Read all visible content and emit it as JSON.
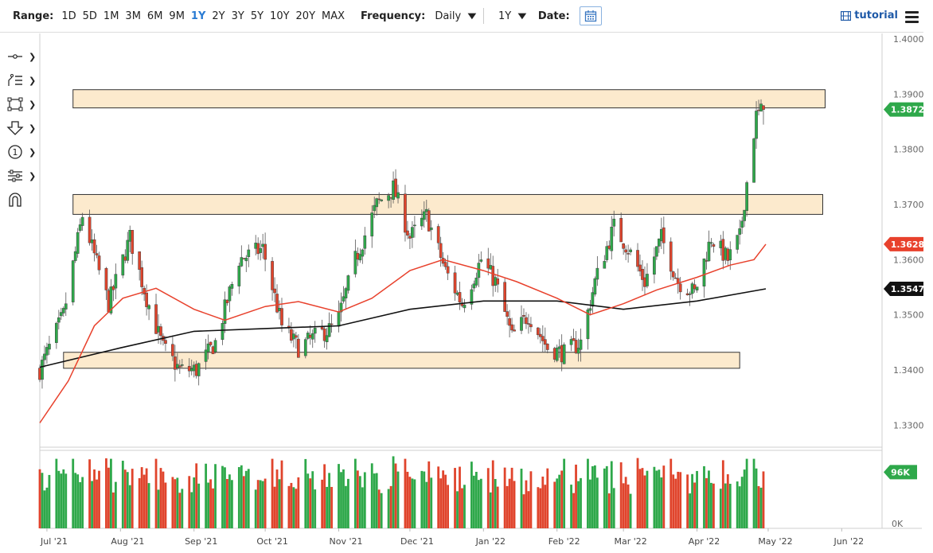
{
  "toolbar": {
    "range_label": "Range:",
    "ranges": [
      "1D",
      "5D",
      "1M",
      "3M",
      "6M",
      "9M",
      "1Y",
      "2Y",
      "3Y",
      "5Y",
      "10Y",
      "20Y",
      "MAX"
    ],
    "active_range": "1Y",
    "frequency_label": "Frequency:",
    "frequency_value": "Daily",
    "period_value": "1Y",
    "date_label": "Date:",
    "tutorial_label": "tutorial"
  },
  "sidebar": {
    "tools": [
      "crosshair-icon",
      "drawing-list-icon",
      "rectangle-select-icon",
      "arrow-down-icon",
      "numbered-marker-icon",
      "indicator-settings-icon",
      "magnet-icon"
    ]
  },
  "colors": {
    "up": "#2ea84a",
    "down": "#e0442c",
    "ma_fast": "#e8412c",
    "ma_slow": "#111111",
    "zone_fill": "#fbe6c4",
    "zone_stroke": "#333333",
    "axis_text": "#666666",
    "volume_highlight": "#3355cc"
  },
  "chart_data": {
    "type": "candlestick",
    "y_ticks": [
      "1.4000",
      "1.3900",
      "1.3800",
      "1.3700",
      "1.3600",
      "1.3500",
      "1.3400",
      "1.3300"
    ],
    "ylim": [
      1.326,
      1.401
    ],
    "x_ticks": [
      "Jul '21",
      "Aug '21",
      "Sep '21",
      "Oct '21",
      "Nov '21",
      "Dec '21",
      "Jan '22",
      "Feb '22",
      "Mar '22",
      "Apr '22",
      "May '22",
      "Jun '22"
    ],
    "x_range": [
      "2021-06-28",
      "2022-06-18"
    ],
    "price_tags": [
      {
        "label": "1.3872",
        "value": 1.3872,
        "color": "#2ea84a"
      },
      {
        "label": "1.3628",
        "value": 1.3628,
        "color": "#e8412c"
      },
      {
        "label": "1.3547",
        "value": 1.3547,
        "color": "#111111"
      }
    ],
    "zones": [
      {
        "from": "2021-07-12",
        "to": "2022-05-25",
        "low": 1.3875,
        "high": 1.3908
      },
      {
        "from": "2021-07-12",
        "to": "2022-05-24",
        "low": 1.3682,
        "high": 1.3718
      },
      {
        "from": "2021-07-08",
        "to": "2022-04-19",
        "low": 1.3403,
        "high": 1.3432
      }
    ],
    "key_closes": [
      [
        "2021-06-28",
        1.34
      ],
      [
        "2021-07-08",
        1.35
      ],
      [
        "2021-07-16",
        1.368
      ],
      [
        "2021-07-27",
        1.352
      ],
      [
        "2021-08-05",
        1.364
      ],
      [
        "2021-08-12",
        1.353
      ],
      [
        "2021-08-19",
        1.344
      ],
      [
        "2021-08-26",
        1.34
      ],
      [
        "2021-09-02",
        1.34
      ],
      [
        "2021-09-10",
        1.345
      ],
      [
        "2021-09-20",
        1.36
      ],
      [
        "2021-09-30",
        1.362
      ],
      [
        "2021-10-08",
        1.348
      ],
      [
        "2021-10-15",
        1.344
      ],
      [
        "2021-10-22",
        1.346
      ],
      [
        "2021-10-31",
        1.348
      ],
      [
        "2021-11-08",
        1.36
      ],
      [
        "2021-11-17",
        1.37
      ],
      [
        "2021-11-24",
        1.373
      ],
      [
        "2021-12-01",
        1.364
      ],
      [
        "2021-12-08",
        1.368
      ],
      [
        "2021-12-16",
        1.358
      ],
      [
        "2021-12-23",
        1.352
      ],
      [
        "2021-12-31",
        1.36
      ],
      [
        "2022-01-06",
        1.356
      ],
      [
        "2022-01-13",
        1.346
      ],
      [
        "2022-01-20",
        1.35
      ],
      [
        "2022-01-28",
        1.344
      ],
      [
        "2022-02-04",
        1.343
      ],
      [
        "2022-02-11",
        1.345
      ],
      [
        "2022-02-17",
        1.356
      ],
      [
        "2022-02-25",
        1.366
      ],
      [
        "2022-03-03",
        1.362
      ],
      [
        "2022-03-10",
        1.356
      ],
      [
        "2022-03-17",
        1.364
      ],
      [
        "2022-03-24",
        1.356
      ],
      [
        "2022-03-31",
        1.354
      ],
      [
        "2022-04-07",
        1.364
      ],
      [
        "2022-04-14",
        1.36
      ],
      [
        "2022-04-19",
        1.364
      ],
      [
        "2022-04-22",
        1.374
      ],
      [
        "2022-04-26",
        1.386
      ],
      [
        "2022-04-29",
        1.3872
      ]
    ],
    "ma_fast": [
      [
        "2021-06-28",
        1.3304
      ],
      [
        "2021-07-10",
        1.338
      ],
      [
        "2021-07-21",
        1.348
      ],
      [
        "2021-08-02",
        1.353
      ],
      [
        "2021-08-16",
        1.3548
      ],
      [
        "2021-09-01",
        1.351
      ],
      [
        "2021-09-14",
        1.349
      ],
      [
        "2021-10-01",
        1.3515
      ],
      [
        "2021-10-15",
        1.3524
      ],
      [
        "2021-11-01",
        1.3505
      ],
      [
        "2021-11-15",
        1.353
      ],
      [
        "2021-12-01",
        1.358
      ],
      [
        "2021-12-15",
        1.36
      ],
      [
        "2022-01-01",
        1.358
      ],
      [
        "2022-01-15",
        1.356
      ],
      [
        "2022-02-01",
        1.353
      ],
      [
        "2022-02-15",
        1.35
      ],
      [
        "2022-03-01",
        1.352
      ],
      [
        "2022-03-15",
        1.3545
      ],
      [
        "2022-04-01",
        1.3568
      ],
      [
        "2022-04-15",
        1.359
      ],
      [
        "2022-04-25",
        1.36
      ],
      [
        "2022-04-30",
        1.3628
      ]
    ],
    "ma_slow": [
      [
        "2021-06-28",
        1.3405
      ],
      [
        "2021-08-01",
        1.344
      ],
      [
        "2021-09-01",
        1.347
      ],
      [
        "2021-10-01",
        1.3475
      ],
      [
        "2021-11-01",
        1.348
      ],
      [
        "2021-12-01",
        1.351
      ],
      [
        "2022-01-01",
        1.3525
      ],
      [
        "2022-02-01",
        1.3525
      ],
      [
        "2022-03-01",
        1.351
      ],
      [
        "2022-04-01",
        1.3525
      ],
      [
        "2022-04-30",
        1.3547
      ]
    ],
    "volume": {
      "axis_labels": [
        "96K",
        "0K"
      ],
      "last": 96000,
      "max": 125000
    }
  }
}
